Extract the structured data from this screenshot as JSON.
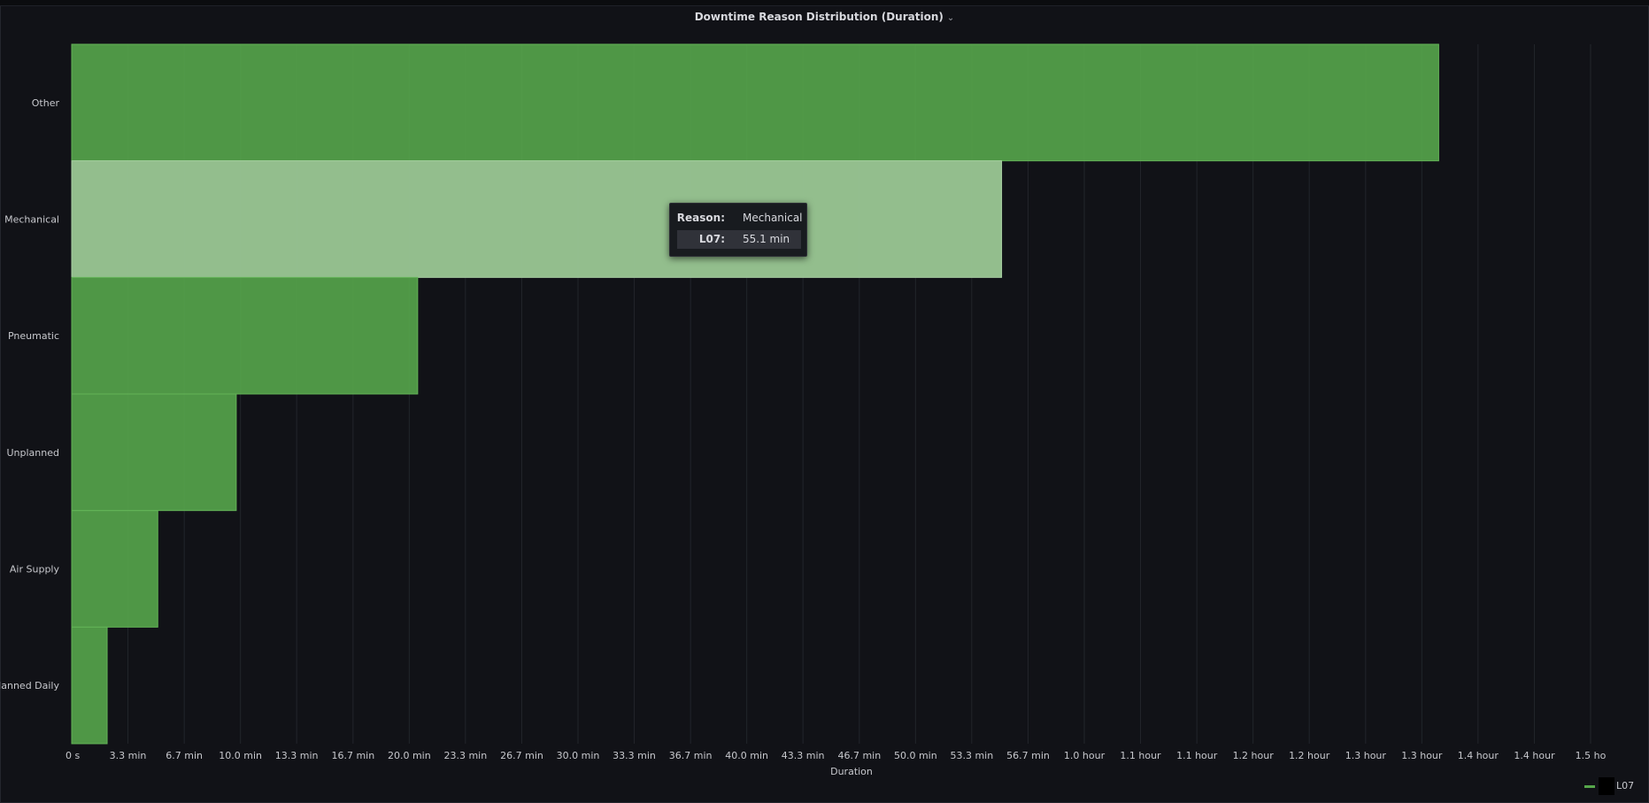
{
  "panel": {
    "title": "Downtime Reason Distribution (Duration)",
    "title_chevron": "⌄"
  },
  "tooltip": {
    "reason_key": "Reason:",
    "reason_value": "Mechanical",
    "series_key": "L07:",
    "series_value": "55.1 min"
  },
  "legend": {
    "label": "L07",
    "color": "#56a64b"
  },
  "chart_data": {
    "type": "bar",
    "orientation": "horizontal",
    "categories": [
      "Other",
      "Mechanical",
      "Pneumatic",
      "Unplanned",
      "Air Supply",
      "Planned Daily"
    ],
    "series": [
      {
        "name": "L07",
        "values_min": [
          81.0,
          55.1,
          20.5,
          9.75,
          5.1,
          2.1
        ]
      }
    ],
    "highlighted_category": "Mechanical",
    "xlabel": "Duration",
    "xlim_min": [
      0,
      90
    ],
    "x_ticks_min": [
      0,
      3.33,
      6.67,
      10,
      13.33,
      16.67,
      20,
      23.33,
      26.67,
      30,
      33.33,
      36.67,
      40,
      43.33,
      46.67,
      50,
      53.33,
      56.67,
      60,
      63.33,
      66.67,
      70,
      73.33,
      76.67,
      80,
      83.33,
      86.67,
      90
    ],
    "x_tick_labels": [
      "0 s",
      "3.3 min",
      "6.7 min",
      "10.0 min",
      "13.3 min",
      "16.7 min",
      "20.0 min",
      "23.3 min",
      "26.7 min",
      "30.0 min",
      "33.3 min",
      "36.7 min",
      "40.0 min",
      "43.3 min",
      "46.7 min",
      "50.0 min",
      "53.3 min",
      "56.7 min",
      "1.0 hour",
      "1.1 hour",
      "1.1 hour",
      "1.2 hour",
      "1.2 hour",
      "1.3 hour",
      "1.3 hour",
      "1.4 hour",
      "1.4 hour",
      "1.5 ho"
    ],
    "colors": {
      "bar": "#56a64b",
      "bar_highlight": "#96c290",
      "grid": "#22252b",
      "text": "#c7c8cd"
    }
  }
}
